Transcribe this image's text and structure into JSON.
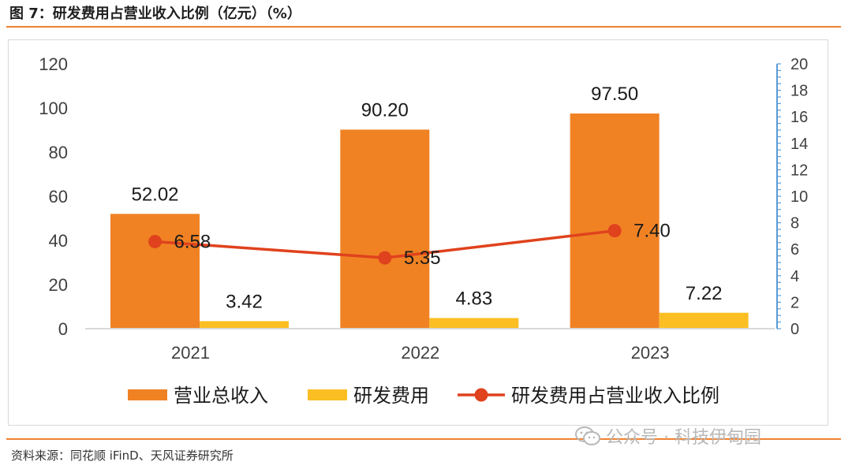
{
  "figure": {
    "title": "图 7：研发费用占营业收入比例（亿元）（%）",
    "source": "资料来源：同花顺 iFinD、天风证券研究所",
    "watermark": "公众号 · 科技伊甸园",
    "watermark_icon": "wechat-icon"
  },
  "colors": {
    "revenue": "#f08224",
    "rd": "#fbbf24",
    "ratio": "#e0421d",
    "right_axis": "#5b9bd5",
    "rule": "#f08231"
  },
  "chart_data": {
    "type": "bar",
    "categories": [
      "2021",
      "2022",
      "2023"
    ],
    "series": [
      {
        "name": "营业总收入",
        "type": "bar",
        "axis": "left",
        "values": [
          52.02,
          90.2,
          97.5
        ],
        "labels": [
          "52.02",
          "90.20",
          "97.50"
        ]
      },
      {
        "name": "研发费用",
        "type": "bar",
        "axis": "left",
        "values": [
          3.42,
          4.83,
          7.22
        ],
        "labels": [
          "3.42",
          "4.83",
          "7.22"
        ]
      },
      {
        "name": "研发费用占营业收入比例",
        "type": "line",
        "axis": "right",
        "values": [
          6.58,
          5.35,
          7.4
        ],
        "labels": [
          "6.58",
          "5.35",
          "7.40"
        ]
      }
    ],
    "y_left": {
      "min": 0,
      "max": 120,
      "ticks": [
        "0",
        "20",
        "40",
        "60",
        "80",
        "100",
        "120"
      ]
    },
    "y_right": {
      "min": 0,
      "max": 20,
      "ticks": [
        "0",
        "2",
        "4",
        "6",
        "8",
        "10",
        "12",
        "14",
        "16",
        "18",
        "20"
      ]
    },
    "grid": false,
    "legend_position": "bottom"
  }
}
